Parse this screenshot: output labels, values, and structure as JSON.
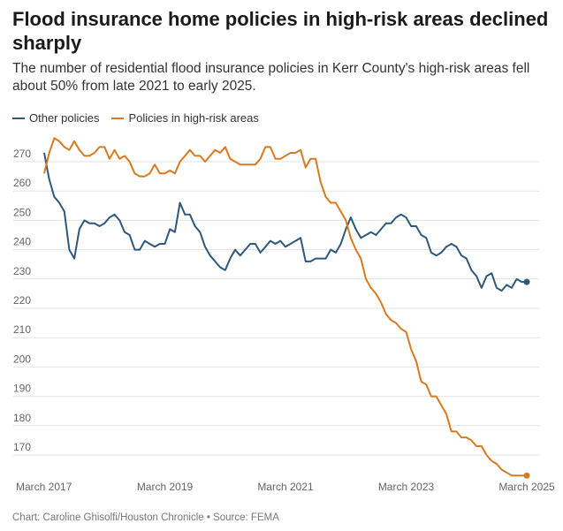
{
  "chart_data": {
    "type": "line",
    "title": "Flood insurance home policies in high-risk areas declined sharply",
    "subtitle": "The number of residential flood insurance policies in Kerr County's high-risk areas fell about 50% from late 2021 to early 2025.",
    "source": "Chart: Caroline Ghisolfi/Houston Chronicle • Source: FEMA",
    "x_start": "March 2017",
    "x_end": "March 2025",
    "x_interval": "monthly",
    "x_ticks": [
      "March 2017",
      "March 2019",
      "March 2021",
      "March 2023",
      "March 2025"
    ],
    "y_ticks": [
      170,
      180,
      190,
      200,
      210,
      220,
      230,
      240,
      250,
      260,
      270
    ],
    "ylim": [
      165,
      280
    ],
    "grid": true,
    "legend_position": "top-left",
    "series": [
      {
        "name": "Other policies",
        "color": "#2e587c",
        "values": [
          273,
          264,
          258,
          256,
          253,
          240,
          237,
          247,
          250,
          249,
          249,
          248,
          249,
          251,
          252,
          250,
          246,
          245,
          240,
          240,
          243,
          242,
          241,
          242,
          242,
          247,
          246,
          256,
          252,
          252,
          248,
          246,
          241,
          238,
          236,
          234,
          233,
          237,
          240,
          238,
          240,
          242,
          242,
          239,
          241,
          243,
          242,
          243,
          241,
          242,
          243,
          244,
          236,
          236,
          237,
          237,
          237,
          240,
          239,
          242,
          247,
          251,
          247,
          244,
          245,
          246,
          245,
          247,
          249,
          249,
          251,
          252,
          251,
          248,
          248,
          245,
          244,
          239,
          238,
          239,
          241,
          242,
          241,
          238,
          237,
          233,
          231,
          227,
          231,
          232,
          227,
          226,
          228,
          227,
          230,
          229,
          229
        ]
      },
      {
        "name": "Policies in high-risk areas",
        "color": "#d97a1f",
        "values": [
          266,
          273,
          278,
          277,
          275,
          274,
          277,
          274,
          272,
          272,
          273,
          275,
          275,
          271,
          274,
          271,
          272,
          270,
          266,
          265,
          265,
          266,
          269,
          266,
          266,
          267,
          266,
          270,
          272,
          274,
          272,
          272,
          270,
          272,
          274,
          273,
          275,
          271,
          270,
          269,
          269,
          269,
          269,
          271,
          275,
          275,
          271,
          271,
          272,
          273,
          273,
          274,
          268,
          271,
          271,
          263,
          258,
          256,
          256,
          253,
          250,
          244,
          240,
          237,
          230,
          227,
          225,
          222,
          218,
          216,
          215,
          213,
          212,
          206,
          202,
          195,
          194,
          190,
          190,
          187,
          184,
          178,
          178,
          176,
          176,
          175,
          173,
          173,
          170,
          168,
          167,
          165,
          164,
          163,
          163,
          163,
          163
        ]
      }
    ]
  }
}
